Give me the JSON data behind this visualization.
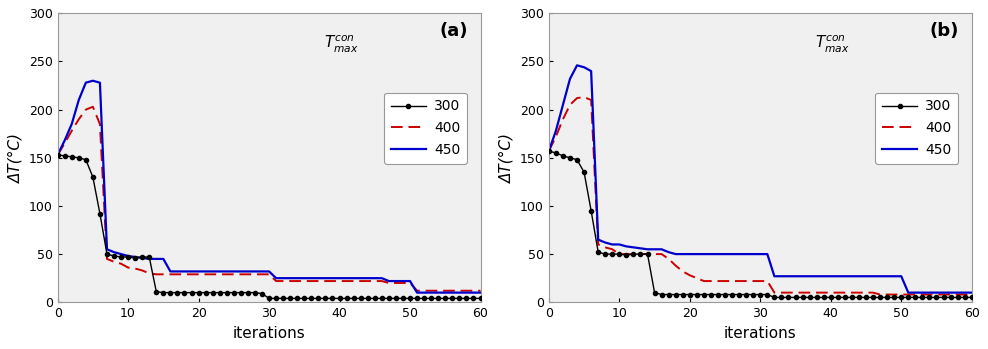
{
  "panel_a": {
    "label": "(a)",
    "black_x": [
      0,
      1,
      2,
      3,
      4,
      5,
      6,
      7,
      8,
      9,
      10,
      11,
      12,
      13,
      14,
      15,
      16,
      17,
      18,
      19,
      20,
      21,
      22,
      23,
      24,
      25,
      26,
      27,
      28,
      29,
      30,
      31,
      32,
      33,
      34,
      35,
      36,
      37,
      38,
      39,
      40,
      41,
      42,
      43,
      44,
      45,
      46,
      47,
      48,
      49,
      50,
      51,
      52,
      53,
      54,
      55,
      56,
      57,
      58,
      59,
      60
    ],
    "black_y": [
      153,
      152,
      151,
      150,
      148,
      130,
      92,
      50,
      48,
      47,
      47,
      46,
      47,
      47,
      11,
      10,
      10,
      10,
      10,
      10,
      10,
      10,
      10,
      10,
      10,
      10,
      10,
      10,
      10,
      9,
      4,
      4,
      4,
      4,
      4,
      4,
      4,
      4,
      4,
      4,
      4,
      4,
      4,
      4,
      4,
      4,
      4,
      4,
      4,
      4,
      4,
      4,
      4,
      4,
      4,
      4,
      4,
      4,
      4,
      4,
      4
    ],
    "red_x": [
      0,
      1,
      2,
      3,
      4,
      5,
      6,
      7,
      8,
      9,
      10,
      11,
      12,
      13,
      14,
      15,
      16,
      17,
      18,
      19,
      20,
      21,
      22,
      23,
      24,
      25,
      26,
      27,
      28,
      29,
      30,
      31,
      32,
      33,
      34,
      35,
      36,
      37,
      38,
      39,
      40,
      41,
      42,
      43,
      44,
      45,
      46,
      47,
      48,
      49,
      50,
      51,
      52,
      53,
      54,
      55,
      56,
      57,
      58,
      59,
      60
    ],
    "red_y": [
      153,
      165,
      178,
      190,
      200,
      203,
      185,
      45,
      42,
      40,
      36,
      35,
      33,
      30,
      29,
      29,
      29,
      29,
      29,
      29,
      29,
      29,
      29,
      29,
      29,
      29,
      29,
      29,
      29,
      29,
      29,
      22,
      22,
      22,
      22,
      22,
      22,
      22,
      22,
      22,
      22,
      22,
      22,
      22,
      22,
      22,
      22,
      20,
      20,
      20,
      20,
      12,
      12,
      12,
      12,
      12,
      12,
      12,
      12,
      12,
      12
    ],
    "blue_x": [
      0,
      1,
      2,
      3,
      4,
      5,
      6,
      7,
      8,
      9,
      10,
      11,
      12,
      13,
      14,
      15,
      16,
      17,
      18,
      19,
      20,
      21,
      22,
      23,
      24,
      25,
      26,
      27,
      28,
      29,
      30,
      31,
      32,
      33,
      34,
      35,
      36,
      37,
      38,
      39,
      40,
      41,
      42,
      43,
      44,
      45,
      46,
      47,
      48,
      49,
      50,
      51,
      52,
      53,
      54,
      55,
      56,
      57,
      58,
      59,
      60
    ],
    "blue_y": [
      153,
      168,
      185,
      210,
      228,
      230,
      228,
      55,
      52,
      50,
      48,
      47,
      46,
      45,
      45,
      45,
      32,
      32,
      32,
      32,
      32,
      32,
      32,
      32,
      32,
      32,
      32,
      32,
      32,
      32,
      32,
      25,
      25,
      25,
      25,
      25,
      25,
      25,
      25,
      25,
      25,
      25,
      25,
      25,
      25,
      25,
      25,
      22,
      22,
      22,
      22,
      10,
      10,
      10,
      10,
      10,
      10,
      10,
      10,
      10,
      10
    ]
  },
  "panel_b": {
    "label": "(b)",
    "black_x": [
      0,
      1,
      2,
      3,
      4,
      5,
      6,
      7,
      8,
      9,
      10,
      11,
      12,
      13,
      14,
      15,
      16,
      17,
      18,
      19,
      20,
      21,
      22,
      23,
      24,
      25,
      26,
      27,
      28,
      29,
      30,
      31,
      32,
      33,
      34,
      35,
      36,
      37,
      38,
      39,
      40,
      41,
      42,
      43,
      44,
      45,
      46,
      47,
      48,
      49,
      50,
      51,
      52,
      53,
      54,
      55,
      56,
      57,
      58,
      59,
      60
    ],
    "black_y": [
      157,
      155,
      152,
      150,
      148,
      135,
      95,
      52,
      50,
      50,
      50,
      49,
      50,
      50,
      50,
      10,
      8,
      8,
      8,
      8,
      8,
      8,
      8,
      8,
      8,
      8,
      8,
      8,
      8,
      8,
      8,
      8,
      5,
      5,
      5,
      5,
      5,
      5,
      5,
      5,
      5,
      5,
      5,
      5,
      5,
      5,
      5,
      5,
      5,
      5,
      5,
      5,
      5,
      5,
      5,
      5,
      5,
      5,
      5,
      5,
      5
    ],
    "red_x": [
      0,
      1,
      2,
      3,
      4,
      5,
      6,
      7,
      8,
      9,
      10,
      11,
      12,
      13,
      14,
      15,
      16,
      17,
      18,
      19,
      20,
      21,
      22,
      23,
      24,
      25,
      26,
      27,
      28,
      29,
      30,
      31,
      32,
      33,
      34,
      35,
      36,
      37,
      38,
      39,
      40,
      41,
      42,
      43,
      44,
      45,
      46,
      47,
      48,
      49,
      50,
      51,
      52,
      53,
      54,
      55,
      56,
      57,
      58,
      59,
      60
    ],
    "red_y": [
      157,
      172,
      190,
      205,
      212,
      213,
      210,
      60,
      57,
      55,
      50,
      50,
      50,
      50,
      50,
      50,
      50,
      45,
      38,
      32,
      28,
      25,
      22,
      22,
      22,
      22,
      22,
      22,
      22,
      22,
      22,
      22,
      10,
      10,
      10,
      10,
      10,
      10,
      10,
      10,
      10,
      10,
      10,
      10,
      10,
      10,
      10,
      8,
      8,
      8,
      8,
      8,
      8,
      8,
      8,
      8,
      8,
      8,
      8,
      8,
      8
    ],
    "blue_x": [
      0,
      1,
      2,
      3,
      4,
      5,
      6,
      7,
      8,
      9,
      10,
      11,
      12,
      13,
      14,
      15,
      16,
      17,
      18,
      19,
      20,
      21,
      22,
      23,
      24,
      25,
      26,
      27,
      28,
      29,
      30,
      31,
      32,
      33,
      34,
      35,
      36,
      37,
      38,
      39,
      40,
      41,
      42,
      43,
      44,
      45,
      46,
      47,
      48,
      49,
      50,
      51,
      52,
      53,
      54,
      55,
      56,
      57,
      58,
      59,
      60
    ],
    "blue_y": [
      157,
      178,
      205,
      232,
      246,
      244,
      240,
      65,
      62,
      60,
      60,
      58,
      57,
      56,
      55,
      55,
      55,
      52,
      50,
      50,
      50,
      50,
      50,
      50,
      50,
      50,
      50,
      50,
      50,
      50,
      50,
      50,
      27,
      27,
      27,
      27,
      27,
      27,
      27,
      27,
      27,
      27,
      27,
      27,
      27,
      27,
      27,
      27,
      27,
      27,
      27,
      10,
      10,
      10,
      10,
      10,
      10,
      10,
      10,
      10,
      10
    ]
  },
  "xlim": [
    0,
    60
  ],
  "ylim": [
    0,
    300
  ],
  "yticks": [
    0,
    50,
    100,
    150,
    200,
    250,
    300
  ],
  "xticks": [
    0,
    10,
    20,
    30,
    40,
    50,
    60
  ],
  "xlabel": "iterations",
  "ylabel_a": "ΔT(°C)",
  "ylabel_b": "ΔT(°C)",
  "legend_entries": [
    "300",
    "400",
    "450"
  ],
  "black_color": "#000000",
  "red_color": "#cc0000",
  "blue_color": "#0000cc",
  "plot_bg_color": "#f0f0f0",
  "fig_bg_color": "#ffffff",
  "panel_label_fontsize": 13,
  "legend_fontsize": 10,
  "axis_label_fontsize": 11,
  "tick_fontsize": 9,
  "annotation_fontsize": 11
}
